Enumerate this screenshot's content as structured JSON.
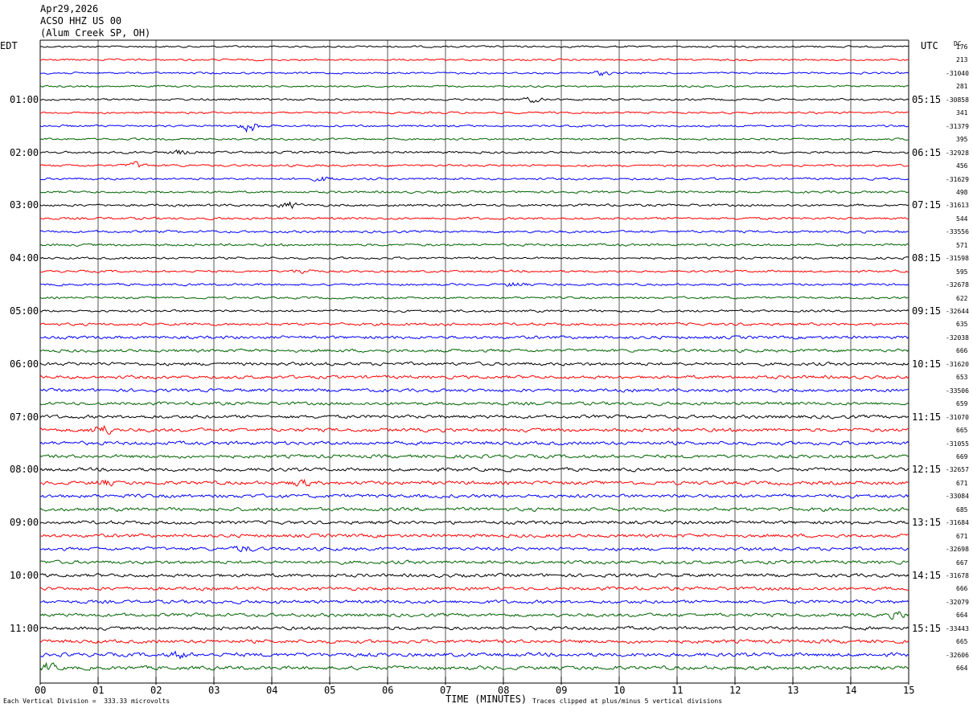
{
  "header": {
    "date": "Apr29,2026",
    "station": "ACSO HHZ US 00",
    "location": "(Alum Creek SP, OH)"
  },
  "left_tz": "EDT",
  "right_tz": "UTC",
  "dc_header": "DC",
  "footer": {
    "scale_note": "Each Vertical Division =  333.33 microvolts",
    "xlabel": "TIME (MINUTES)",
    "clip_note": "Traces clipped at plus/minus 5 vertical divisions"
  },
  "chart_data": {
    "type": "line",
    "title": "Apr29,2026 ACSO HHZ US 00 (Alum Creek SP, OH)",
    "xlabel": "TIME (MINUTES)",
    "xlim": [
      0,
      15
    ],
    "x_ticks": [
      "00",
      "01",
      "02",
      "03",
      "04",
      "05",
      "06",
      "07",
      "08",
      "09",
      "10",
      "11",
      "12",
      "13",
      "14",
      "15"
    ],
    "rows_per_hour": 4,
    "row_count": 48,
    "trace_colors": [
      "#000000",
      "#ff0000",
      "#0000ff",
      "#006400"
    ],
    "left_hour_labels": [
      "01:00",
      "02:00",
      "03:00",
      "04:00",
      "05:00",
      "06:00",
      "07:00",
      "08:00",
      "09:00",
      "10:00",
      "11:00"
    ],
    "right_hour_labels": [
      "05:15",
      "06:15",
      "07:15",
      "08:15",
      "09:15",
      "10:15",
      "11:15",
      "12:15",
      "13:15",
      "14:15",
      "15:15"
    ],
    "dc_offsets": [
      "176",
      "213",
      "-31040",
      "281",
      "-30858",
      "341",
      "-31379",
      "395",
      "-32928",
      "456",
      "-31629",
      "498",
      "-31613",
      "544",
      "-33556",
      "571",
      "-31598",
      "595",
      "-32678",
      "622",
      "-32644",
      "635",
      "-32038",
      "666",
      "-31620",
      "653",
      "-33506",
      "659",
      "-31070",
      "665",
      "-31055",
      "669",
      "-32657",
      "671",
      "-33084",
      "685",
      "-31684",
      "671",
      "-32698",
      "667",
      "-31678",
      "666",
      "-32079",
      "664",
      "-33443",
      "665",
      "-32606",
      "664"
    ],
    "noise_amplitude_rows": [
      2.2,
      2.2,
      2.2,
      2.2,
      2.4,
      2.4,
      2.4,
      2.4,
      2.6,
      2.6,
      2.6,
      2.6,
      2.8,
      2.8,
      2.8,
      2.8,
      2.6,
      2.6,
      2.6,
      2.6,
      2.8,
      3.2,
      3.6,
      3.6,
      3.8,
      3.8,
      3.8,
      3.8,
      4.0,
      4.2,
      4.2,
      4.0,
      4.0,
      4.2,
      4.2,
      4.2,
      4.0,
      4.0,
      4.0,
      4.0,
      4.0,
      4.0,
      4.0,
      4.0,
      4.0,
      4.2,
      4.4,
      4.4
    ],
    "events": [
      {
        "row": 2,
        "minute": 9.7,
        "amp": 3
      },
      {
        "row": 4,
        "minute": 8.5,
        "amp": 3
      },
      {
        "row": 6,
        "minute": 3.6,
        "amp": 8
      },
      {
        "row": 8,
        "minute": 2.4,
        "amp": 3
      },
      {
        "row": 9,
        "minute": 1.65,
        "amp": 4
      },
      {
        "row": 10,
        "minute": 4.9,
        "amp": 3
      },
      {
        "row": 12,
        "minute": 4.3,
        "amp": 4
      },
      {
        "row": 17,
        "minute": 4.55,
        "amp": 3
      },
      {
        "row": 18,
        "minute": 8.2,
        "amp": 3
      },
      {
        "row": 33,
        "minute": 4.5,
        "amp": 4
      },
      {
        "row": 33,
        "minute": 1.1,
        "amp": 3
      },
      {
        "row": 29,
        "minute": 1.05,
        "amp": 7
      },
      {
        "row": 38,
        "minute": 3.5,
        "amp": 4
      },
      {
        "row": 43,
        "minute": 14.8,
        "amp": 4
      },
      {
        "row": 46,
        "minute": 2.4,
        "amp": 4
      },
      {
        "row": 47,
        "minute": 0.1,
        "amp": 5
      }
    ]
  }
}
